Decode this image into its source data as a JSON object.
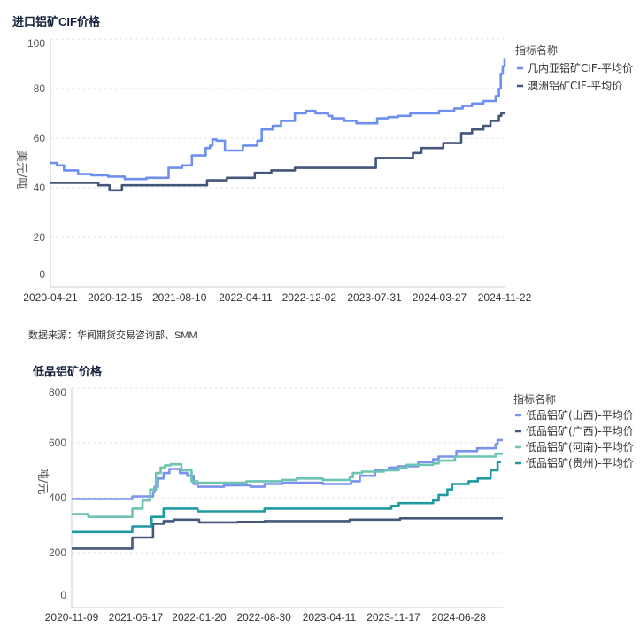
{
  "source_note": "数据来源：华闻期货交易咨询部、SMM",
  "chart_data": [
    {
      "type": "line",
      "title": "进口铝矿CIF价格",
      "xlabel": "",
      "ylabel": "美元/吨",
      "ylim": [
        0,
        100
      ],
      "yticks": [
        0,
        20,
        40,
        60,
        80,
        100
      ],
      "xrange": [
        "2020-04-21",
        "2024-11-22"
      ],
      "xtick_labels": [
        "2020-04-21",
        "2020-12-15",
        "2021-08-10",
        "2022-04-11",
        "2022-12-02",
        "2023-07-31",
        "2024-03-27",
        "2024-11-22"
      ],
      "grid": true,
      "legend_title": "指标名称",
      "legend_position": "top-right",
      "series": [
        {
          "name": "几内亚铝矿CIF-平均价",
          "color": "#6d8ff0",
          "step": true,
          "points": [
            [
              "2020-04-21",
              50
            ],
            [
              "2020-05-15",
              49
            ],
            [
              "2020-06-10",
              47
            ],
            [
              "2020-08-01",
              45.5
            ],
            [
              "2020-09-20",
              45
            ],
            [
              "2020-11-20",
              44.5
            ],
            [
              "2021-01-20",
              43.5
            ],
            [
              "2021-04-10",
              44
            ],
            [
              "2021-07-01",
              48
            ],
            [
              "2021-08-20",
              49
            ],
            [
              "2021-09-25",
              53
            ],
            [
              "2021-11-15",
              56
            ],
            [
              "2021-12-01",
              57
            ],
            [
              "2021-12-10",
              59.5
            ],
            [
              "2021-12-25",
              59
            ],
            [
              "2022-01-25",
              55
            ],
            [
              "2022-04-01",
              57
            ],
            [
              "2022-05-25",
              59
            ],
            [
              "2022-06-10",
              63.5
            ],
            [
              "2022-07-20",
              65
            ],
            [
              "2022-08-20",
              67
            ],
            [
              "2022-10-10",
              70
            ],
            [
              "2022-11-20",
              71
            ],
            [
              "2022-12-25",
              70
            ],
            [
              "2023-02-10",
              69
            ],
            [
              "2023-02-25",
              68
            ],
            [
              "2023-04-10",
              67
            ],
            [
              "2023-05-25",
              66
            ],
            [
              "2023-08-10",
              68
            ],
            [
              "2023-09-20",
              68.5
            ],
            [
              "2023-10-25",
              69
            ],
            [
              "2023-12-10",
              70
            ],
            [
              "2024-03-25",
              71
            ],
            [
              "2024-05-20",
              72
            ],
            [
              "2024-06-20",
              73
            ],
            [
              "2024-07-25",
              74
            ],
            [
              "2024-09-05",
              75
            ],
            [
              "2024-10-20",
              77
            ],
            [
              "2024-11-01",
              80
            ],
            [
              "2024-11-08",
              86
            ],
            [
              "2024-11-15",
              89
            ],
            [
              "2024-11-22",
              92
            ]
          ]
        },
        {
          "name": "澳洲铝矿CIF-平均价",
          "color": "#44567a",
          "step": true,
          "points": [
            [
              "2020-04-21",
              42
            ],
            [
              "2020-10-15",
              41
            ],
            [
              "2020-11-25",
              39
            ],
            [
              "2021-01-10",
              41
            ],
            [
              "2021-11-20",
              43
            ],
            [
              "2022-02-01",
              44
            ],
            [
              "2022-05-15",
              46
            ],
            [
              "2022-07-15",
              47
            ],
            [
              "2022-10-10",
              48
            ],
            [
              "2023-08-05",
              52
            ],
            [
              "2023-12-20",
              54
            ],
            [
              "2024-01-20",
              56
            ],
            [
              "2024-04-10",
              58
            ],
            [
              "2024-06-15",
              62
            ],
            [
              "2024-07-25",
              63.5
            ],
            [
              "2024-09-05",
              65
            ],
            [
              "2024-10-01",
              67
            ],
            [
              "2024-11-01",
              69
            ],
            [
              "2024-11-10",
              70
            ],
            [
              "2024-11-22",
              70
            ]
          ]
        }
      ]
    },
    {
      "type": "line",
      "title": "低品铝矿价格",
      "xlabel": "",
      "ylabel": "吨/元",
      "ylim": [
        0,
        800
      ],
      "yticks": [
        0,
        200,
        400,
        600,
        800
      ],
      "xrange": [
        "2020-11-09",
        "2024-11-26"
      ],
      "xtick_labels": [
        "2020-11-09",
        "2021-06-17",
        "2022-01-20",
        "2022-08-30",
        "2023-04-11",
        "2023-11-17",
        "2024-06-28"
      ],
      "grid": true,
      "legend_title": "指标名称",
      "legend_position": "top-right",
      "series": [
        {
          "name": "低品铝矿(山西)-平均价",
          "color": "#7b93ee",
          "step": true,
          "points": [
            [
              "2020-11-09",
              395
            ],
            [
              "2021-06-05",
              405
            ],
            [
              "2021-08-15",
              420
            ],
            [
              "2021-08-20",
              440
            ],
            [
              "2021-09-01",
              470
            ],
            [
              "2021-09-20",
              490
            ],
            [
              "2021-10-10",
              505
            ],
            [
              "2021-11-15",
              490
            ],
            [
              "2021-12-10",
              480
            ],
            [
              "2022-01-01",
              450
            ],
            [
              "2022-01-15",
              440
            ],
            [
              "2022-04-15",
              445
            ],
            [
              "2022-07-15",
              440
            ],
            [
              "2022-09-01",
              450
            ],
            [
              "2022-11-01",
              455
            ],
            [
              "2023-03-20",
              450
            ],
            [
              "2023-06-25",
              460
            ],
            [
              "2023-07-25",
              480
            ],
            [
              "2023-09-15",
              500
            ],
            [
              "2023-11-01",
              510
            ],
            [
              "2023-12-01",
              515
            ],
            [
              "2024-02-10",
              530
            ],
            [
              "2024-04-01",
              540
            ],
            [
              "2024-04-20",
              550
            ],
            [
              "2024-06-20",
              570
            ],
            [
              "2024-08-30",
              580
            ],
            [
              "2024-11-01",
              595
            ],
            [
              "2024-11-08",
              610
            ],
            [
              "2024-11-26",
              610
            ]
          ]
        },
        {
          "name": "低品铝矿(广西)-平均价",
          "color": "#45587b",
          "step": true,
          "points": [
            [
              "2020-11-09",
              215
            ],
            [
              "2021-06-05",
              255
            ],
            [
              "2021-08-15",
              305
            ],
            [
              "2021-09-20",
              315
            ],
            [
              "2021-10-25",
              320
            ],
            [
              "2022-01-20",
              310
            ],
            [
              "2022-06-01",
              312
            ],
            [
              "2022-09-01",
              315
            ],
            [
              "2023-06-20",
              320
            ],
            [
              "2023-12-10",
              325
            ],
            [
              "2024-11-26",
              325
            ]
          ]
        },
        {
          "name": "低品铝矿(河南)-平均价",
          "color": "#6cc4b2",
          "step": true,
          "points": [
            [
              "2020-11-09",
              340
            ],
            [
              "2021-01-05",
              330
            ],
            [
              "2021-06-05",
              360
            ],
            [
              "2021-07-10",
              390
            ],
            [
              "2021-08-05",
              430
            ],
            [
              "2021-08-25",
              490
            ],
            [
              "2021-09-10",
              510
            ],
            [
              "2021-09-25",
              518
            ],
            [
              "2021-10-15",
              522
            ],
            [
              "2021-11-20",
              500
            ],
            [
              "2021-12-25",
              460
            ],
            [
              "2022-01-15",
              455
            ],
            [
              "2022-07-01",
              460
            ],
            [
              "2022-11-01",
              465
            ],
            [
              "2022-12-20",
              470
            ],
            [
              "2023-03-20",
              465
            ],
            [
              "2023-06-20",
              475
            ],
            [
              "2023-07-01",
              490
            ],
            [
              "2023-08-01",
              495
            ],
            [
              "2023-10-15",
              500
            ],
            [
              "2023-12-05",
              510
            ],
            [
              "2024-01-01",
              520
            ],
            [
              "2024-04-01",
              525
            ],
            [
              "2024-04-20",
              535
            ],
            [
              "2024-06-15",
              550
            ],
            [
              "2024-11-01",
              560
            ],
            [
              "2024-11-26",
              560
            ]
          ]
        },
        {
          "name": "低品铝矿(贵州)-平均价",
          "color": "#1f9aa0",
          "step": true,
          "points": [
            [
              "2020-11-09",
              275
            ],
            [
              "2021-06-05",
              295
            ],
            [
              "2021-08-10",
              330
            ],
            [
              "2021-09-20",
              360
            ],
            [
              "2022-01-15",
              350
            ],
            [
              "2022-09-01",
              360
            ],
            [
              "2023-11-10",
              370
            ],
            [
              "2023-12-05",
              380
            ],
            [
              "2024-04-01",
              390
            ],
            [
              "2024-04-20",
              410
            ],
            [
              "2024-05-20",
              430
            ],
            [
              "2024-06-05",
              450
            ],
            [
              "2024-08-01",
              460
            ],
            [
              "2024-09-01",
              470
            ],
            [
              "2024-10-15",
              500
            ],
            [
              "2024-11-08",
              530
            ],
            [
              "2024-11-20",
              530
            ]
          ]
        }
      ]
    }
  ]
}
